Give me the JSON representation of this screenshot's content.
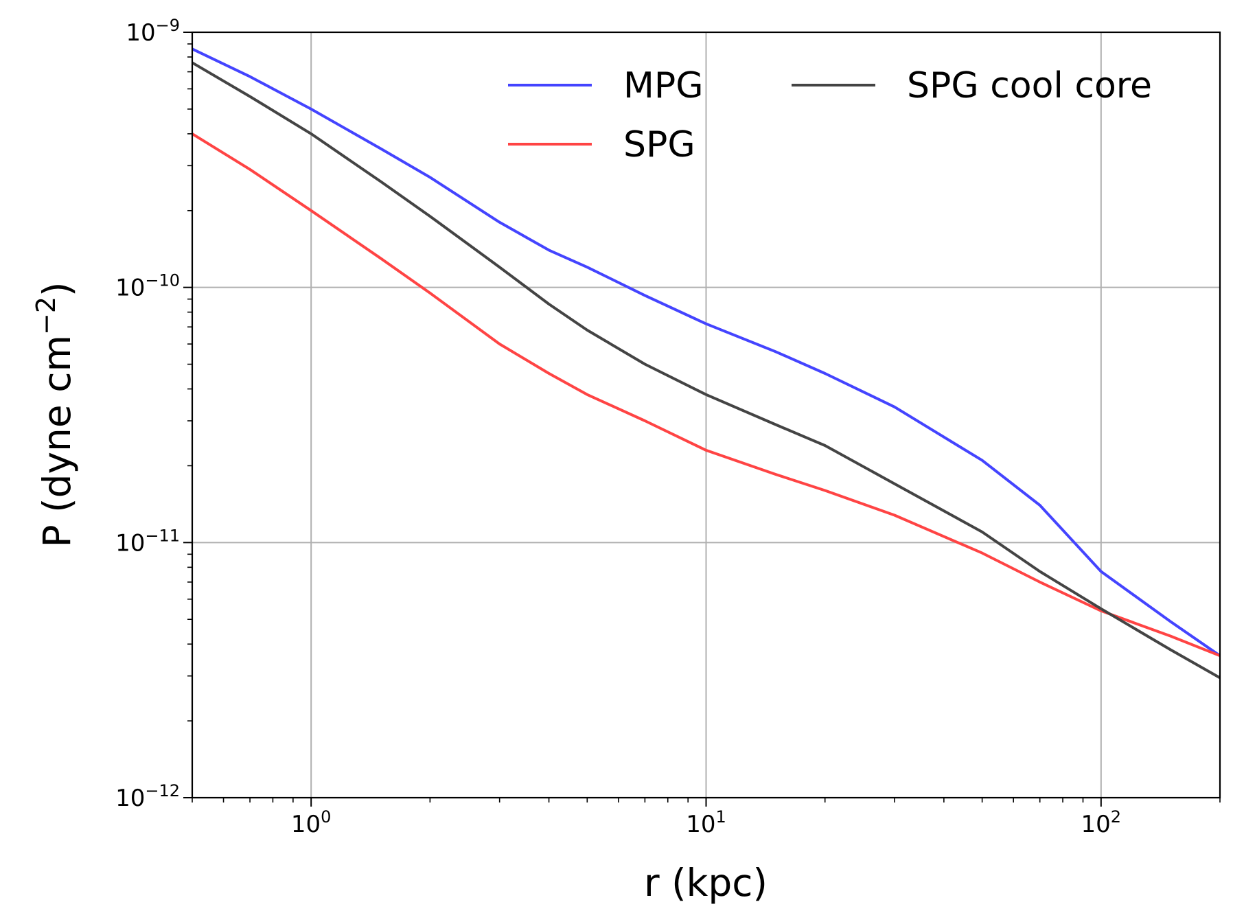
{
  "chart_data": {
    "type": "line",
    "title": "",
    "xlabel": "r (kpc)",
    "ylabel_text": "P (dyne cm",
    "ylabel_exp": "−2",
    "ylabel_close": ")",
    "xscale": "log",
    "yscale": "log",
    "xlim": [
      0.5,
      200
    ],
    "ylim": [
      1e-12,
      1e-09
    ],
    "grid": true,
    "legend": {
      "placement": "top-right",
      "columns": 2,
      "frame": false
    },
    "x_major_ticks": [
      {
        "value": 1,
        "base": "10",
        "exp": "0"
      },
      {
        "value": 10,
        "base": "10",
        "exp": "1"
      },
      {
        "value": 100,
        "base": "10",
        "exp": "2"
      }
    ],
    "x_minor_ticks": [
      0.5,
      0.6,
      0.7,
      0.8,
      0.9,
      2,
      3,
      4,
      5,
      6,
      7,
      8,
      9,
      20,
      30,
      40,
      50,
      60,
      70,
      80,
      90,
      200
    ],
    "y_major_ticks": [
      {
        "value": 1e-12,
        "base": "10",
        "exp": "−12"
      },
      {
        "value": 1e-11,
        "base": "10",
        "exp": "−11"
      },
      {
        "value": 1e-10,
        "base": "10",
        "exp": "−10"
      },
      {
        "value": 1e-09,
        "base": "10",
        "exp": "−9"
      }
    ],
    "y_minor_ticks": [
      2e-12,
      3e-12,
      4e-12,
      5e-12,
      6e-12,
      7e-12,
      8e-12,
      9e-12,
      2e-11,
      3e-11,
      4e-11,
      5e-11,
      6e-11,
      7e-11,
      8e-11,
      9e-11,
      2e-10,
      3e-10,
      4e-10,
      5e-10,
      6e-10,
      7e-10,
      8e-10,
      9e-10
    ],
    "series": [
      {
        "name": "MPG",
        "color": "#4444ff",
        "x": [
          0.5,
          0.7,
          1,
          1.5,
          2,
          3,
          4,
          5,
          7,
          10,
          15,
          20,
          30,
          50,
          70,
          100,
          150,
          200
        ],
        "y": [
          8.6e-10,
          6.7e-10,
          5e-10,
          3.5e-10,
          2.7e-10,
          1.8e-10,
          1.4e-10,
          1.2e-10,
          9.3e-11,
          7.2e-11,
          5.6e-11,
          4.6e-11,
          3.4e-11,
          2.1e-11,
          1.4e-11,
          7.7e-12,
          4.9e-12,
          3.6e-12
        ]
      },
      {
        "name": "SPG",
        "color": "#ff4444",
        "x": [
          0.5,
          0.7,
          1,
          1.5,
          2,
          3,
          4,
          5,
          7,
          10,
          15,
          20,
          30,
          50,
          70,
          100,
          150,
          200
        ],
        "y": [
          4e-10,
          2.9e-10,
          2e-10,
          1.3e-10,
          9.5e-11,
          6e-11,
          4.6e-11,
          3.8e-11,
          3e-11,
          2.3e-11,
          1.85e-11,
          1.6e-11,
          1.28e-11,
          9.1e-12,
          7e-12,
          5.4e-12,
          4.3e-12,
          3.6e-12
        ]
      },
      {
        "name": "SPG cool core",
        "color": "#444444",
        "x": [
          0.5,
          0.7,
          1,
          1.5,
          2,
          3,
          4,
          5,
          7,
          10,
          15,
          20,
          30,
          50,
          70,
          100,
          150,
          200
        ],
        "y": [
          7.6e-10,
          5.6e-10,
          4e-10,
          2.6e-10,
          1.9e-10,
          1.2e-10,
          8.6e-11,
          6.8e-11,
          5e-11,
          3.8e-11,
          2.9e-11,
          2.4e-11,
          1.7e-11,
          1.1e-11,
          7.7e-12,
          5.5e-12,
          3.8e-12,
          2.95e-12
        ]
      }
    ]
  }
}
